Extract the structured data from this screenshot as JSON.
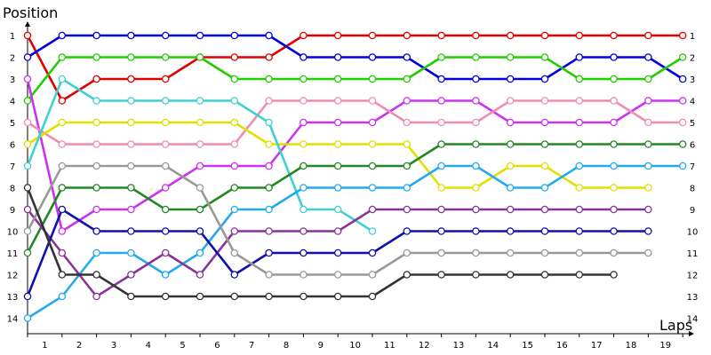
{
  "chart_data": {
    "type": "line",
    "x_title": "Laps",
    "y_title": "Position",
    "x_tick_labels": [
      "1",
      "2",
      "3",
      "4",
      "5",
      "6",
      "7",
      "8",
      "9",
      "10",
      "11",
      "12",
      "13",
      "14",
      "15",
      "16",
      "17",
      "18",
      "19"
    ],
    "y_tick_labels": [
      "1",
      "2",
      "3",
      "4",
      "5",
      "6",
      "7",
      "8",
      "9",
      "10",
      "11",
      "12",
      "13",
      "14"
    ],
    "x_range": [
      0,
      19
    ],
    "y_range": [
      1,
      14
    ],
    "y_reversed": true,
    "grid": false,
    "marker": "hollow-circle",
    "series": [
      {
        "color": "#e00000",
        "values": [
          1,
          4,
          3,
          3,
          3,
          2,
          2,
          2,
          1,
          1,
          1,
          1,
          1,
          1,
          1,
          1,
          1,
          1,
          1,
          1
        ]
      },
      {
        "color": "#0000dd",
        "values": [
          2,
          1,
          1,
          1,
          1,
          1,
          1,
          1,
          2,
          2,
          2,
          2,
          3,
          3,
          3,
          3,
          2,
          2,
          2,
          3
        ]
      },
      {
        "color": "#22cc00",
        "values": [
          4,
          2,
          2,
          2,
          2,
          2,
          3,
          3,
          3,
          3,
          3,
          3,
          2,
          2,
          2,
          2,
          3,
          3,
          3,
          2
        ]
      },
      {
        "color": "#cc33ee",
        "values": [
          3,
          10,
          9,
          9,
          8,
          7,
          7,
          7,
          5,
          5,
          5,
          4,
          4,
          4,
          5,
          5,
          5,
          5,
          4,
          4
        ]
      },
      {
        "color": "#f08cb0",
        "values": [
          5,
          6,
          6,
          6,
          6,
          6,
          6,
          4,
          4,
          4,
          4,
          5,
          5,
          5,
          4,
          4,
          4,
          4,
          5,
          5
        ]
      },
      {
        "color": "#e0e000",
        "values": [
          6,
          5,
          5,
          5,
          5,
          5,
          5,
          6,
          6,
          6,
          6,
          6,
          8,
          8,
          7,
          7,
          8,
          8,
          8
        ]
      },
      {
        "color": "#40d0d0",
        "values": [
          7,
          3,
          4,
          4,
          4,
          4,
          4,
          5,
          9,
          9,
          10
        ]
      },
      {
        "color": "#22aaee",
        "values": [
          14,
          13,
          11,
          11,
          12,
          11,
          9,
          9,
          8,
          8,
          8,
          8,
          7,
          7,
          8,
          8,
          7,
          7,
          7,
          7
        ]
      },
      {
        "color": "#228822",
        "values": [
          11,
          8,
          8,
          8,
          9,
          9,
          8,
          8,
          7,
          7,
          7,
          7,
          6,
          6,
          6,
          6,
          6,
          6,
          6,
          6
        ]
      },
      {
        "color": "#883399",
        "values": [
          9,
          11,
          13,
          12,
          11,
          12,
          10,
          10,
          10,
          10,
          9,
          9,
          9,
          9,
          9,
          9,
          9,
          9,
          9
        ]
      },
      {
        "color": "#1010aa",
        "values": [
          13,
          9,
          10,
          10,
          10,
          10,
          12,
          11,
          11,
          11,
          11,
          10,
          10,
          10,
          10,
          10,
          10,
          10,
          10
        ]
      },
      {
        "color": "#999999",
        "values": [
          10,
          7,
          7,
          7,
          7,
          8,
          11,
          12,
          12,
          12,
          12,
          11,
          11,
          11,
          11,
          11,
          11,
          11,
          11
        ]
      },
      {
        "color": "#333333",
        "values": [
          8,
          12,
          12,
          13,
          13,
          13,
          13,
          13,
          13,
          13,
          13,
          12,
          12,
          12,
          12,
          12,
          12,
          12
        ]
      }
    ]
  }
}
